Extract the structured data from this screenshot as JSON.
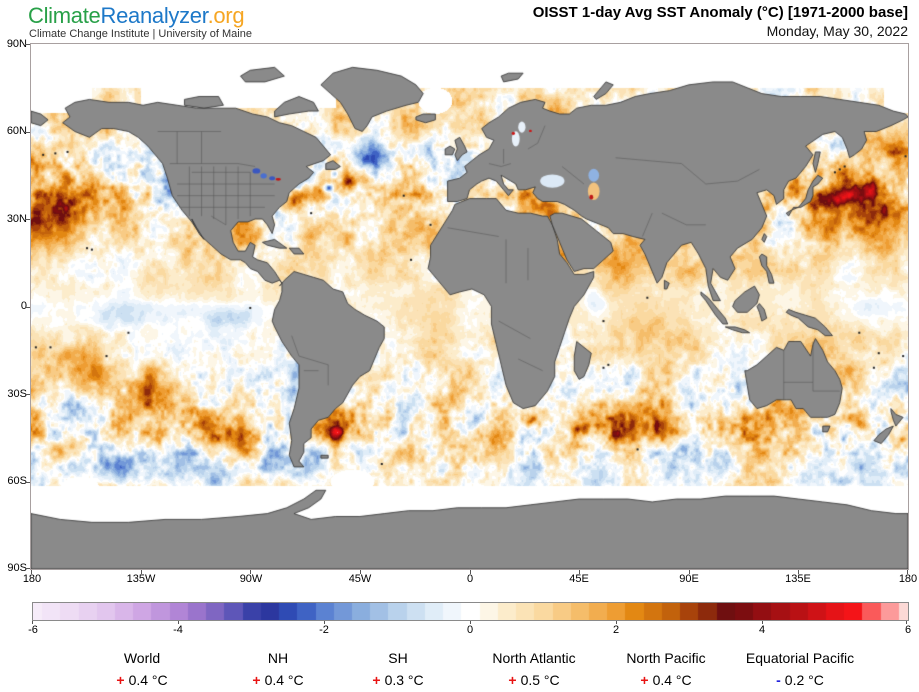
{
  "header": {
    "logo": {
      "part1": "Climate",
      "part2": "Reanalyzer",
      "part3": ".org",
      "part1_color": "#28a048",
      "part2_color": "#1d78c8",
      "part3_color": "#f6a623",
      "subtitle": "Climate Change Institute | University of Maine"
    },
    "title": "OISST 1-day Avg SST Anomaly (°C) [1971-2000 base]",
    "date": "Monday, May 30, 2022"
  },
  "map": {
    "lat_ticks": [
      "90N",
      "60N",
      "30N",
      "0",
      "30S",
      "60S",
      "90S"
    ],
    "lon_ticks": [
      "180",
      "135W",
      "90W",
      "45W",
      "0",
      "45E",
      "90E",
      "135E",
      "180"
    ],
    "land_color": "#8a8a8a",
    "coast_color": "#2f2f2f",
    "border_color": "#555555",
    "ice_color": "#ffffff",
    "frame_color": "#a8a0a0"
  },
  "colorbar": {
    "min": -6,
    "max": 6,
    "step": 0.25,
    "tick_labels": [
      "-6",
      "-4",
      "-2",
      "0",
      "2",
      "4",
      "6"
    ],
    "stops": [
      {
        "v": -6,
        "c": "#f6ecf9"
      },
      {
        "v": -5.5,
        "c": "#eedcf4"
      },
      {
        "v": -5,
        "c": "#e2c6ee"
      },
      {
        "v": -4.5,
        "c": "#cfa6e4"
      },
      {
        "v": -4,
        "c": "#b185d6"
      },
      {
        "v": -3.75,
        "c": "#9a74cc"
      },
      {
        "v": -3.5,
        "c": "#7f66c2"
      },
      {
        "v": -3.25,
        "c": "#5e56b8"
      },
      {
        "v": -3,
        "c": "#3a41a8"
      },
      {
        "v": -2.75,
        "c": "#2c379f"
      },
      {
        "v": -2.5,
        "c": "#2f4bb4"
      },
      {
        "v": -2.25,
        "c": "#3f63c4"
      },
      {
        "v": -2,
        "c": "#5b82d2"
      },
      {
        "v": -1.5,
        "c": "#8aaede"
      },
      {
        "v": -1,
        "c": "#b9d2ec"
      },
      {
        "v": -0.5,
        "c": "#e0edf8"
      },
      {
        "v": -0.25,
        "c": "#f0f6fc"
      },
      {
        "v": 0,
        "c": "#ffffff"
      },
      {
        "v": 0.25,
        "c": "#fdf6e6"
      },
      {
        "v": 0.5,
        "c": "#fceccb"
      },
      {
        "v": 1,
        "c": "#fad9a0"
      },
      {
        "v": 1.5,
        "c": "#f5bd6a"
      },
      {
        "v": 2,
        "c": "#ee9d33"
      },
      {
        "v": 2.25,
        "c": "#e38813"
      },
      {
        "v": 2.5,
        "c": "#d3750f"
      },
      {
        "v": 2.75,
        "c": "#c2620c"
      },
      {
        "v": 3,
        "c": "#a8430b"
      },
      {
        "v": 3.25,
        "c": "#8d2a0c"
      },
      {
        "v": 3.5,
        "c": "#6f0f10"
      },
      {
        "v": 3.75,
        "c": "#7c0d10"
      },
      {
        "v": 4,
        "c": "#930e12"
      },
      {
        "v": 4.5,
        "c": "#b91114"
      },
      {
        "v": 5,
        "c": "#e51317"
      },
      {
        "v": 5.25,
        "c": "#f41418"
      },
      {
        "v": 5.5,
        "c": "#fa5a5a"
      },
      {
        "v": 5.75,
        "c": "#fc9a9a"
      },
      {
        "v": 6,
        "c": "#fcd9d6"
      }
    ]
  },
  "stats": {
    "items": [
      {
        "label": "World",
        "sign": "+",
        "value": "0.4 °C"
      },
      {
        "label": "NH",
        "sign": "+",
        "value": "0.4 °C"
      },
      {
        "label": "SH",
        "sign": "+",
        "value": "0.3 °C"
      },
      {
        "label": "North Atlantic",
        "sign": "+",
        "value": "0.5 °C"
      },
      {
        "label": "North Pacific",
        "sign": "+",
        "value": "0.4 °C"
      },
      {
        "label": "Equatorial Pacific",
        "sign": "-",
        "value": "0.2 °C"
      }
    ]
  },
  "chart_data": {
    "type": "heatmap",
    "title": "OISST 1-day Avg SST Anomaly (°C) [1971-2000 base]",
    "subtitle": "Monday, May 30, 2022",
    "projection": "equirectangular",
    "x_ticks": [
      "180",
      "135W",
      "90W",
      "45W",
      "0",
      "45E",
      "90E",
      "135E",
      "180"
    ],
    "y_ticks": [
      "90N",
      "60N",
      "30N",
      "0",
      "30S",
      "60S",
      "90S"
    ],
    "colorbar": {
      "units": "°C",
      "min": -6,
      "max": 6,
      "ticks": [
        -6,
        -4,
        -2,
        0,
        2,
        4,
        6
      ],
      "step": 0.25
    },
    "region_mean_anomalies_c": {
      "World": 0.4,
      "NH": 0.4,
      "SH": 0.3,
      "North Atlantic": 0.5,
      "North Pacific": 0.4,
      "Equatorial Pacific": -0.2
    },
    "legend_position": "bottom"
  }
}
